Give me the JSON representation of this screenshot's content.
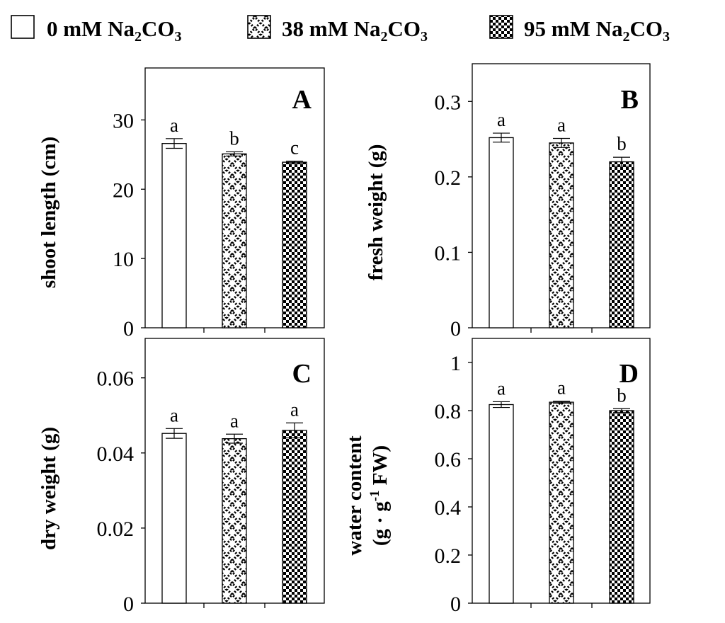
{
  "legend": {
    "items": [
      {
        "label": "0 mM Na",
        "sub": "2",
        "mid": "CO",
        "sub2": "3",
        "pattern": "empty"
      },
      {
        "label": "38 mM Na",
        "sub": "2",
        "mid": "CO",
        "sub2": "3",
        "pattern": "cross"
      },
      {
        "label": "95 mM Na",
        "sub": "2",
        "mid": "CO",
        "sub2": "3",
        "pattern": "checker"
      }
    ]
  },
  "chart_data": [
    {
      "type": "bar",
      "panel": "A",
      "ylabel": "shoot length (cm)",
      "ylim": [
        0,
        37.5
      ],
      "yticks": [
        "0",
        "10",
        "20",
        "30"
      ],
      "yticks_values": [
        0,
        10,
        20,
        30
      ],
      "values": [
        26.6,
        25.1,
        23.9
      ],
      "errors": [
        0.7,
        0.3,
        0.15
      ],
      "significance": [
        "a",
        "b",
        "c"
      ]
    },
    {
      "type": "bar",
      "panel": "B",
      "ylabel": "fresh weight (g)",
      "ylim": [
        0,
        0.35
      ],
      "yticks": [
        "0",
        "0.1",
        "0.2",
        "0.3"
      ],
      "yticks_values": [
        0,
        0.1,
        0.2,
        0.3
      ],
      "values": [
        0.252,
        0.245,
        0.22
      ],
      "errors": [
        0.006,
        0.006,
        0.006
      ],
      "significance": [
        "a",
        "a",
        "b"
      ]
    },
    {
      "type": "bar",
      "panel": "C",
      "ylabel": "dry weight (g)",
      "ylim": [
        0,
        0.0705
      ],
      "yticks": [
        "0",
        "0.02",
        "0.04",
        "0.06"
      ],
      "yticks_values": [
        0,
        0.02,
        0.04,
        0.06
      ],
      "values": [
        0.0452,
        0.0438,
        0.046
      ],
      "errors": [
        0.0013,
        0.0012,
        0.002
      ],
      "significance": [
        "a",
        "a",
        "a"
      ]
    },
    {
      "type": "bar",
      "panel": "D",
      "ylabel_line1": "water content",
      "ylabel_line2_pre": "(g · g",
      "ylabel_line2_sup": "-1",
      "ylabel_line2_post": " FW)",
      "ylim": [
        0,
        1.1
      ],
      "yticks": [
        "0",
        "0.2",
        "0.4",
        "0.6",
        "0.8",
        "1"
      ],
      "yticks_values": [
        0,
        0.2,
        0.4,
        0.6,
        0.8,
        1.0
      ],
      "values": [
        0.825,
        0.835,
        0.8
      ],
      "errors": [
        0.012,
        0.004,
        0.008
      ],
      "significance": [
        "a",
        "a",
        "b"
      ]
    }
  ]
}
